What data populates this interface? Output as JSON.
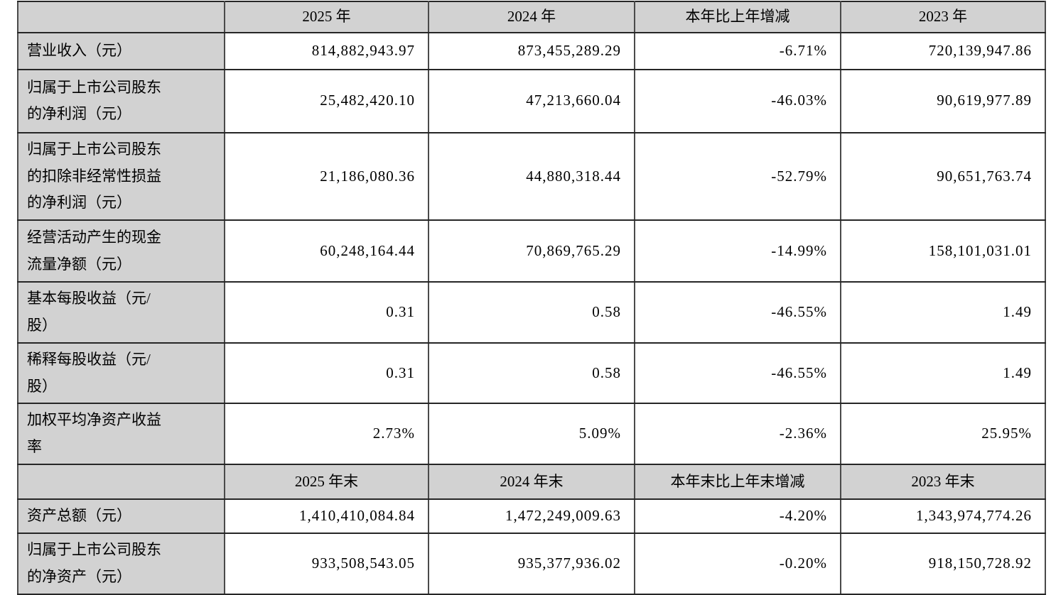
{
  "page": {
    "background": "#ffffff"
  },
  "colors": {
    "cell_shading": "#d2d2d2",
    "grid_horizontal": "#262626",
    "grid_vertical": "#4a4a4a",
    "text": "#000000"
  },
  "table": {
    "description": "主要会计数据和财务指标对比表",
    "sections": [
      {
        "header": [
          "",
          "2025 年",
          "2024 年",
          "本年比上年增减",
          "2023 年"
        ],
        "rows": [
          {
            "label": "营业收入（元）",
            "values": [
              "814,882,943.97",
              "873,455,289.29",
              "-6.71%",
              "720,139,947.86"
            ]
          },
          {
            "label": "归属于上市公司股东的净利润（元）",
            "values": [
              "25,482,420.10",
              "47,213,660.04",
              "-46.03%",
              "90,619,977.89"
            ]
          },
          {
            "label": "归属于上市公司股东的扣除非经常性损益的净利润（元）",
            "values": [
              "21,186,080.36",
              "44,880,318.44",
              "-52.79%",
              "90,651,763.74"
            ]
          },
          {
            "label": "经营活动产生的现金流量净额（元）",
            "values": [
              "60,248,164.44",
              "70,869,765.29",
              "-14.99%",
              "158,101,031.01"
            ]
          },
          {
            "label": "基本每股收益（元/股）",
            "values": [
              "0.31",
              "0.58",
              "-46.55%",
              "1.49"
            ]
          },
          {
            "label": "稀释每股收益（元/股）",
            "values": [
              "0.31",
              "0.58",
              "-46.55%",
              "1.49"
            ]
          },
          {
            "label": "加权平均净资产收益率",
            "values": [
              "2.73%",
              "5.09%",
              "-2.36%",
              "25.95%"
            ]
          }
        ]
      },
      {
        "header": [
          "",
          "2025 年末",
          "2024 年末",
          "本年末比上年末增减",
          "2023 年末"
        ],
        "rows": [
          {
            "label": "资产总额（元）",
            "values": [
              "1,410,410,084.84",
              "1,472,249,009.63",
              "-4.20%",
              "1,343,974,774.26"
            ]
          },
          {
            "label": "归属于上市公司股东的净资产（元）",
            "values": [
              "933,508,543.05",
              "935,377,936.02",
              "-0.20%",
              "918,150,728.92"
            ]
          }
        ]
      }
    ]
  }
}
